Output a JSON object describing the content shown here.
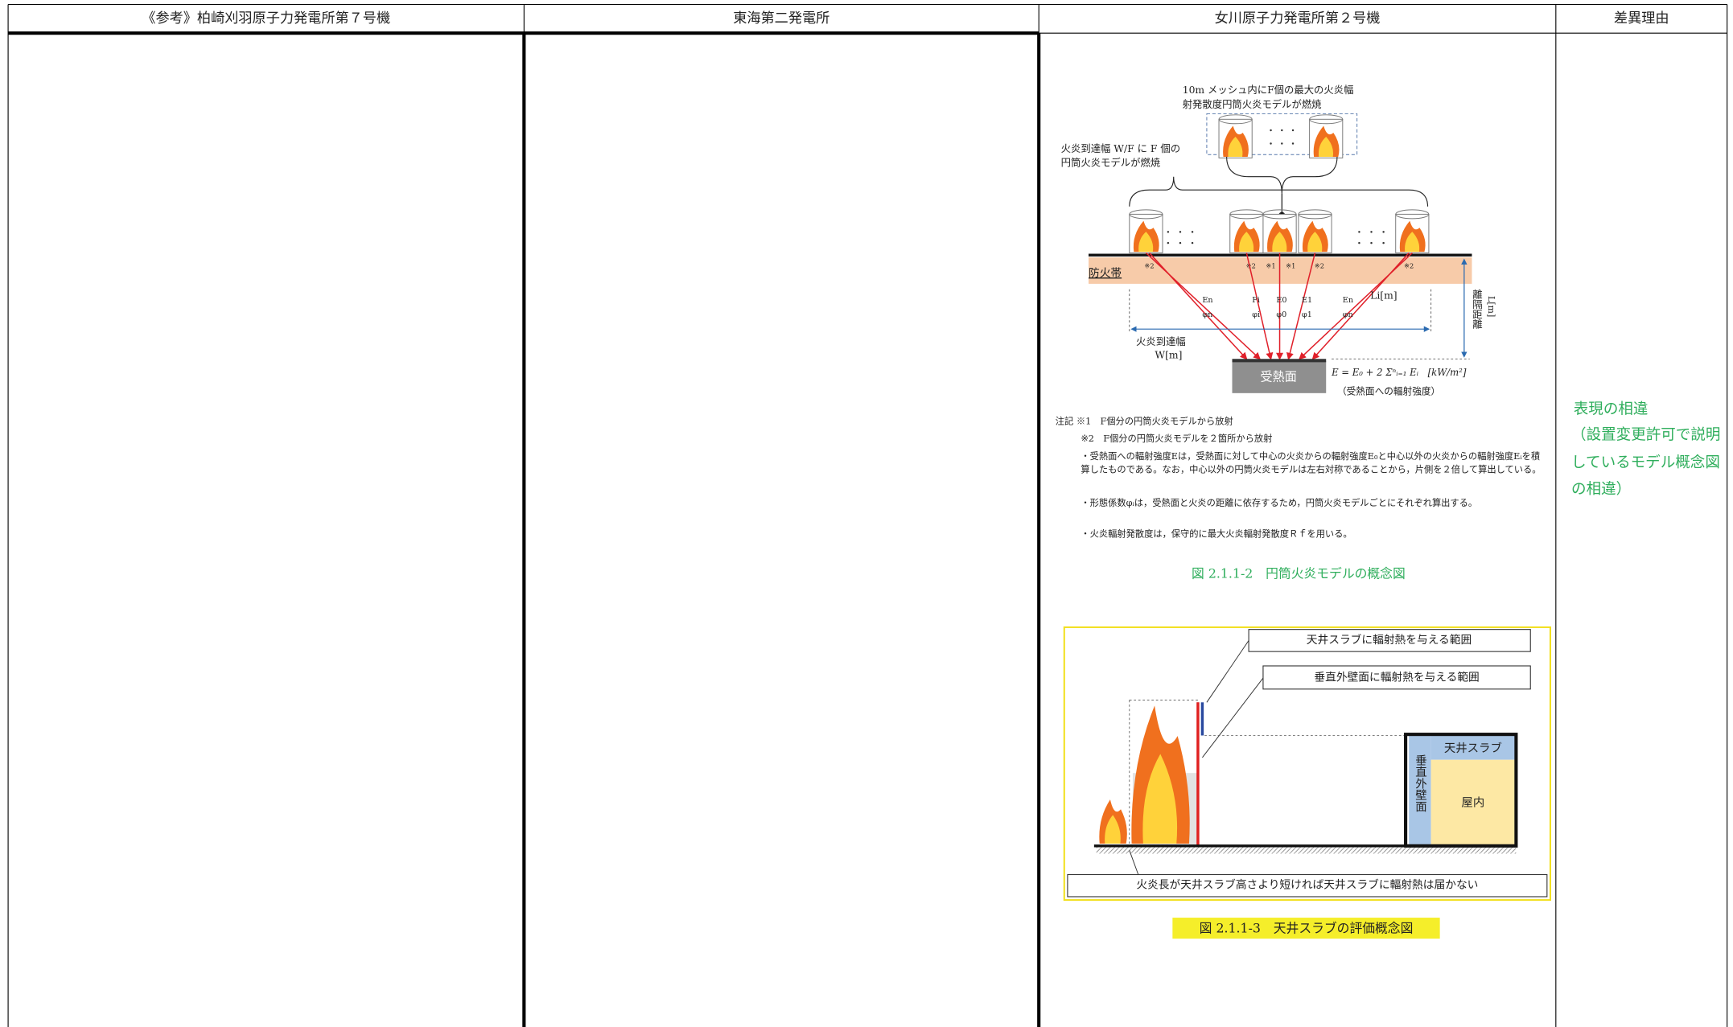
{
  "header": {
    "columns": [
      "《参考》柏崎刈羽原子力発電所第７号機",
      "東海第二発電所",
      "女川原子力発電所第２号機",
      "差異理由"
    ]
  },
  "figure_1": {
    "top_label_1": "10m メッシュ内にF個の最大の火炎幅",
    "top_label_2": "射発散度円筒火炎モデルが燃焼",
    "left_label_1": "火炎到達幅 W/F に F 個の",
    "left_label_2": "円筒火炎モデルが燃焼",
    "firebreak": "防火帯",
    "marks": [
      "※2",
      "※2",
      "※1",
      "※1",
      "※2",
      "※2"
    ],
    "symbols": [
      "En",
      "φn",
      "Fi",
      "φi",
      "E0",
      "φ0",
      "E1",
      "φ1",
      "En",
      "φn"
    ],
    "distance_label": "Li[m]",
    "width_label_1": "火炎到達幅",
    "width_label_2": "W[m]",
    "separation_label_1": "離隔距離",
    "separation_label_2": "L[m]",
    "receiving_surface": "受熱面",
    "formula": "E = E₀ + 2 Σⁿᵢ₌₁ Eᵢ　[kW/m²]",
    "formula_note": "（受熱面への輻射強度）",
    "notes": [
      "注記 ※1　F個分の円筒火炎モデルから放射",
      "※2　F個分の円筒火炎モデルを２箇所から放射",
      "・受熱面への輻射強度Eは，受熱面に対して中心の火炎からの輻射強度E₀と中心以外の火炎からの輻射強度Eᵢを積算したものである。なお，中心以外の円筒火炎モデルは左右対称であることから，片側を２倍して算出している。",
      "・形態係数φᵢは，受熱面と火炎の距離に依存するため，円筒火炎モデルごとにそれぞれ算出する。",
      "・火炎輻射発散度は，保守的に最大火炎輻射発散度Ｒｆを用いる。"
    ],
    "caption": "図 2.1.1-2　円筒火炎モデルの概念図"
  },
  "figure_2": {
    "callout_1": "天井スラブに輻射熱を与える範囲",
    "callout_2": "垂直外壁面に輻射熱を与える範囲",
    "ceiling_slab": "天井スラブ",
    "outer_wall": "垂直外壁面",
    "indoor": "屋内",
    "bottom_note": "火炎長が天井スラブ高さより短ければ天井スラブに輻射熱は届かない",
    "caption": "図 2.1.1-3　天井スラブの評価概念図"
  },
  "reason": {
    "title": "表現の相違",
    "detail": "（設置変更許可で説明しているモデル概念図の相違）"
  }
}
